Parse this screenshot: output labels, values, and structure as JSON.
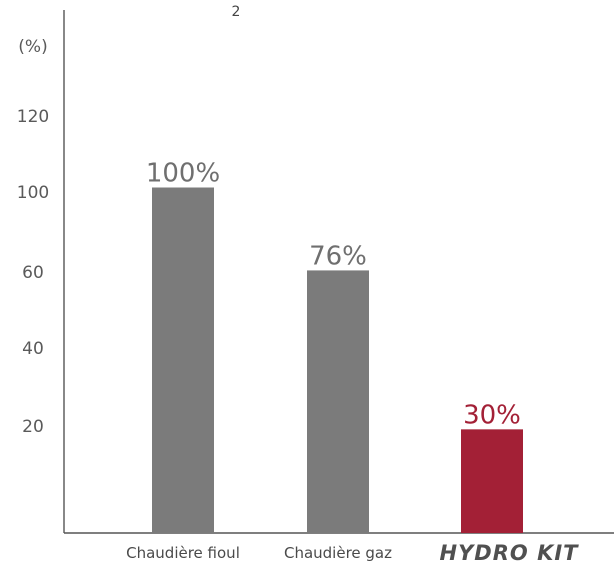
{
  "header": {
    "fragment": "2"
  },
  "chart_data": {
    "type": "bar",
    "ylabel": "(%)",
    "y_tick_labels": [
      "120",
      "100",
      "60",
      "40",
      "20"
    ],
    "categories": [
      "Chaudière fioul",
      "Chaudière gaz",
      "HYDRO KIT"
    ],
    "values": [
      100,
      76,
      30
    ],
    "value_labels": [
      "100%",
      "76%",
      "30%"
    ],
    "colors": [
      "#7b7b7b",
      "#7b7b7b",
      "#a32036"
    ],
    "label_colors": [
      "#6f6f6f",
      "#6f6f6f",
      "#a32036"
    ],
    "grid": false,
    "legend": "none"
  }
}
